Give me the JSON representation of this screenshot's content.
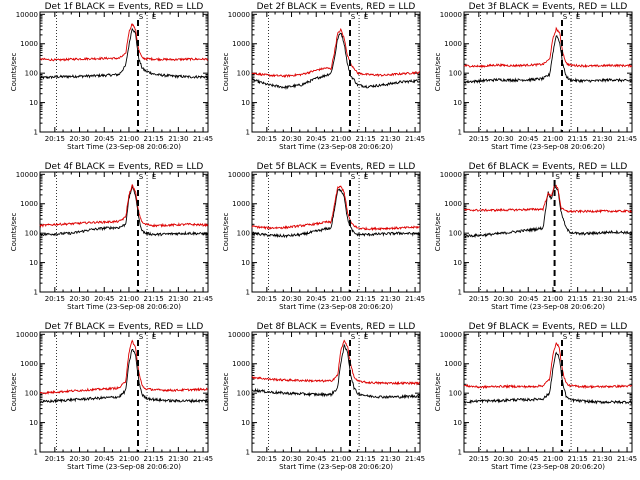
{
  "figure": {
    "colors": {
      "black_series": "#000000",
      "red_series": "#dd0000",
      "background": "#ffffff"
    },
    "x_tick_labels": [
      "20:15",
      "20:30",
      "20:45",
      "21:00",
      "21:15",
      "21:30",
      "21:45"
    ],
    "y_tick_labels": [
      "1",
      "10",
      "100",
      "1000",
      "10000"
    ],
    "ylabel": "Counts/sec",
    "xlabel": "Start Time (23-Sep-08 20:06:20)",
    "marker_glyphs": [
      "S",
      "E"
    ]
  },
  "chart_data": [
    {
      "type": "line",
      "title": "Det 1f BLACK = Events, RED = LLD",
      "x_unit": "minutes since 20:06:20",
      "xlim": [
        0,
        102
      ],
      "ylim": [
        1,
        12000
      ],
      "y_scale": "log",
      "grid": false,
      "series": [
        {
          "color": "#000000",
          "x": [
            0,
            10,
            20,
            30,
            40,
            48,
            52,
            54,
            56,
            58,
            60,
            62,
            64,
            70,
            80,
            90,
            100
          ],
          "values": [
            70,
            75,
            78,
            80,
            85,
            90,
            180,
            900,
            3500,
            2200,
            300,
            150,
            120,
            90,
            80,
            75,
            75
          ]
        },
        {
          "color": "#dd0000",
          "x": [
            0,
            10,
            20,
            30,
            40,
            48,
            52,
            54,
            56,
            58,
            60,
            62,
            64,
            70,
            80,
            90,
            100
          ],
          "values": [
            300,
            280,
            300,
            310,
            320,
            320,
            450,
            2500,
            5000,
            3000,
            600,
            330,
            310,
            300,
            290,
            300,
            300
          ]
        }
      ],
      "vlines_dotted": [
        10,
        65
      ],
      "vline_dashed": 59.5
    },
    {
      "type": "line",
      "title": "Det 2f BLACK = Events, RED = LLD",
      "x_unit": "minutes since 20:06:20",
      "xlim": [
        0,
        102
      ],
      "ylim": [
        1,
        12000
      ],
      "y_scale": "log",
      "grid": false,
      "series": [
        {
          "color": "#000000",
          "x": [
            0,
            10,
            20,
            30,
            40,
            45,
            48,
            50,
            52,
            54,
            56,
            58,
            60,
            62,
            64,
            70,
            80,
            90,
            100
          ],
          "values": [
            60,
            40,
            33,
            40,
            70,
            85,
            100,
            300,
            1500,
            2500,
            1000,
            200,
            80,
            60,
            40,
            35,
            40,
            50,
            55
          ]
        },
        {
          "color": "#dd0000",
          "x": [
            0,
            10,
            20,
            30,
            40,
            45,
            48,
            50,
            52,
            54,
            56,
            58,
            60,
            62,
            64,
            70,
            80,
            90,
            100
          ],
          "values": [
            100,
            85,
            80,
            90,
            130,
            150,
            140,
            500,
            2200,
            3000,
            1500,
            400,
            200,
            150,
            100,
            90,
            85,
            95,
            105
          ]
        }
      ],
      "vlines_dotted": [
        10,
        65
      ],
      "vline_dashed": 59.5
    },
    {
      "type": "line",
      "title": "Det 3f BLACK = Events, RED = LLD",
      "x_unit": "minutes since 20:06:20",
      "xlim": [
        0,
        102
      ],
      "ylim": [
        1,
        12000
      ],
      "y_scale": "log",
      "grid": false,
      "series": [
        {
          "color": "#000000",
          "x": [
            0,
            10,
            20,
            30,
            40,
            48,
            52,
            54,
            56,
            58,
            60,
            62,
            64,
            70,
            80,
            90,
            100
          ],
          "values": [
            50,
            55,
            60,
            58,
            60,
            65,
            90,
            500,
            2000,
            1200,
            200,
            80,
            60,
            55,
            55,
            60,
            55
          ]
        },
        {
          "color": "#dd0000",
          "x": [
            0,
            10,
            20,
            30,
            40,
            48,
            52,
            54,
            56,
            58,
            60,
            62,
            64,
            70,
            80,
            90,
            100
          ],
          "values": [
            180,
            170,
            190,
            180,
            190,
            200,
            300,
            1500,
            3200,
            2400,
            500,
            220,
            190,
            180,
            175,
            185,
            180
          ]
        }
      ],
      "vlines_dotted": [
        10,
        65
      ],
      "vline_dashed": 59.5
    },
    {
      "type": "line",
      "title": "Det 4f BLACK = Events, RED = LLD",
      "x_unit": "minutes since 20:06:20",
      "xlim": [
        0,
        102
      ],
      "ylim": [
        1,
        12000
      ],
      "y_scale": "log",
      "grid": false,
      "series": [
        {
          "color": "#000000",
          "x": [
            0,
            10,
            20,
            30,
            40,
            48,
            52,
            54,
            56,
            58,
            60,
            62,
            64,
            70,
            80,
            90,
            100
          ],
          "values": [
            90,
            95,
            100,
            130,
            150,
            155,
            200,
            1500,
            3800,
            2000,
            300,
            120,
            100,
            90,
            95,
            100,
            95
          ]
        },
        {
          "color": "#dd0000",
          "x": [
            0,
            10,
            20,
            30,
            40,
            48,
            52,
            54,
            56,
            58,
            60,
            62,
            64,
            70,
            80,
            90,
            100
          ],
          "values": [
            180,
            200,
            210,
            230,
            240,
            250,
            350,
            2000,
            4200,
            2500,
            500,
            230,
            200,
            180,
            190,
            200,
            190
          ]
        }
      ],
      "vlines_dotted": [
        10,
        65
      ],
      "vline_dashed": 59.5
    },
    {
      "type": "line",
      "title": "Det 5f BLACK = Events, RED = LLD",
      "x_unit": "minutes since 20:06:20",
      "xlim": [
        0,
        102
      ],
      "ylim": [
        1,
        12000
      ],
      "y_scale": "log",
      "grid": false,
      "series": [
        {
          "color": "#000000",
          "x": [
            0,
            10,
            20,
            30,
            40,
            45,
            48,
            50,
            52,
            54,
            56,
            58,
            60,
            62,
            64,
            70,
            80,
            90,
            100
          ],
          "values": [
            100,
            85,
            80,
            90,
            120,
            140,
            150,
            600,
            2800,
            3000,
            1800,
            300,
            150,
            100,
            90,
            90,
            95,
            100,
            95
          ]
        },
        {
          "color": "#dd0000",
          "x": [
            0,
            10,
            20,
            30,
            40,
            45,
            48,
            50,
            52,
            54,
            56,
            58,
            60,
            62,
            64,
            70,
            80,
            90,
            100
          ],
          "values": [
            170,
            150,
            155,
            180,
            210,
            240,
            230,
            900,
            3500,
            3800,
            2500,
            500,
            230,
            180,
            150,
            140,
            145,
            150,
            160
          ]
        }
      ],
      "vlines_dotted": [
        10,
        65
      ],
      "vline_dashed": 59.5
    },
    {
      "type": "line",
      "title": "Det 6f BLACK = Events, RED = LLD",
      "x_unit": "minutes since 20:06:20",
      "xlim": [
        0,
        102
      ],
      "ylim": [
        1,
        12000
      ],
      "y_scale": "log",
      "grid": false,
      "series": [
        {
          "color": "#000000",
          "x": [
            0,
            10,
            20,
            30,
            40,
            45,
            48,
            51,
            53,
            55,
            57,
            59,
            62,
            64,
            70,
            80,
            90,
            100
          ],
          "values": [
            80,
            85,
            95,
            110,
            130,
            140,
            150,
            2500,
            1500,
            4000,
            3000,
            500,
            150,
            110,
            95,
            100,
            110,
            105
          ]
        },
        {
          "color": "#dd0000",
          "x": [
            0,
            10,
            20,
            30,
            40,
            45,
            48,
            51,
            53,
            55,
            57,
            59,
            62,
            64,
            70,
            80,
            90,
            100
          ],
          "values": [
            620,
            600,
            610,
            620,
            640,
            650,
            660,
            2200,
            1800,
            4500,
            3500,
            700,
            560,
            550,
            550,
            560,
            560,
            560
          ]
        }
      ],
      "vlines_dotted": [
        10,
        65
      ],
      "vline_dashed": 55
    },
    {
      "type": "line",
      "title": "Det 7f BLACK = Events, RED = LLD",
      "x_unit": "minutes since 20:06:20",
      "xlim": [
        0,
        102
      ],
      "ylim": [
        1,
        12000
      ],
      "y_scale": "log",
      "grid": false,
      "series": [
        {
          "color": "#000000",
          "x": [
            0,
            10,
            20,
            30,
            40,
            48,
            52,
            54,
            56,
            58,
            60,
            62,
            64,
            70,
            80,
            90,
            100
          ],
          "values": [
            50,
            55,
            60,
            65,
            70,
            75,
            120,
            1000,
            3300,
            2000,
            250,
            90,
            70,
            60,
            55,
            55,
            55
          ]
        },
        {
          "color": "#dd0000",
          "x": [
            0,
            10,
            20,
            30,
            40,
            48,
            52,
            54,
            56,
            58,
            60,
            62,
            64,
            70,
            80,
            90,
            100
          ],
          "values": [
            100,
            110,
            120,
            130,
            140,
            150,
            250,
            2500,
            6000,
            3500,
            500,
            180,
            140,
            130,
            125,
            130,
            135
          ]
        }
      ],
      "vlines_dotted": [
        10,
        65
      ],
      "vline_dashed": 59.5
    },
    {
      "type": "line",
      "title": "Det 8f BLACK = Events, RED = LLD",
      "x_unit": "minutes since 20:06:20",
      "xlim": [
        0,
        102
      ],
      "ylim": [
        1,
        12000
      ],
      "y_scale": "log",
      "grid": false,
      "series": [
        {
          "color": "#000000",
          "x": [
            0,
            10,
            20,
            30,
            40,
            48,
            52,
            54,
            56,
            58,
            60,
            62,
            64,
            70,
            80,
            90,
            100
          ],
          "values": [
            130,
            110,
            100,
            95,
            90,
            90,
            150,
            1200,
            4000,
            2500,
            400,
            150,
            100,
            80,
            75,
            75,
            80
          ]
        },
        {
          "color": "#dd0000",
          "x": [
            0,
            10,
            20,
            30,
            40,
            48,
            52,
            54,
            56,
            58,
            60,
            62,
            64,
            70,
            80,
            90,
            100
          ],
          "values": [
            350,
            300,
            280,
            270,
            260,
            260,
            400,
            3000,
            6000,
            4000,
            900,
            350,
            260,
            230,
            220,
            220,
            220
          ]
        }
      ],
      "vlines_dotted": [
        10,
        65
      ],
      "vline_dashed": 59.5
    },
    {
      "type": "line",
      "title": "Det 9f BLACK = Events, RED = LLD",
      "x_unit": "minutes since 20:06:20",
      "xlim": [
        0,
        102
      ],
      "ylim": [
        1,
        12000
      ],
      "y_scale": "log",
      "grid": false,
      "series": [
        {
          "color": "#000000",
          "x": [
            0,
            10,
            20,
            30,
            40,
            48,
            52,
            54,
            56,
            58,
            60,
            62,
            64,
            70,
            80,
            90,
            100
          ],
          "values": [
            50,
            55,
            55,
            60,
            60,
            65,
            100,
            700,
            2500,
            1500,
            200,
            80,
            60,
            55,
            50,
            50,
            50
          ]
        },
        {
          "color": "#dd0000",
          "x": [
            0,
            10,
            20,
            30,
            40,
            48,
            52,
            54,
            56,
            58,
            60,
            62,
            64,
            70,
            80,
            90,
            100
          ],
          "values": [
            180,
            160,
            170,
            170,
            165,
            180,
            300,
            2000,
            5500,
            3200,
            500,
            220,
            180,
            170,
            165,
            170,
            175
          ]
        }
      ],
      "vlines_dotted": [
        10,
        65
      ],
      "vline_dashed": 59.5
    }
  ]
}
